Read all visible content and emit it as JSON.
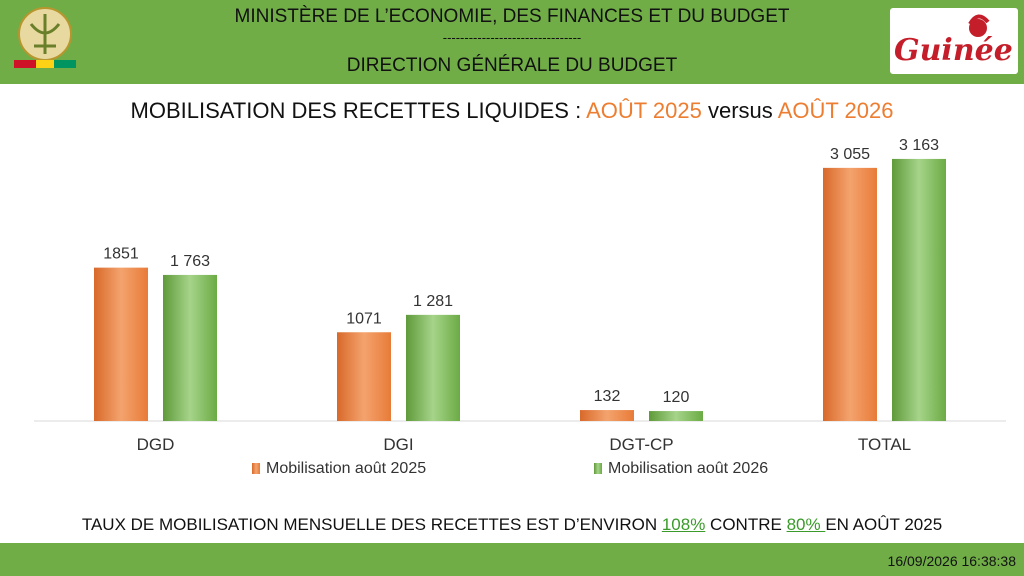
{
  "header": {
    "ministry": "MINISTÈRE DE L’ECONOMIE, DES FINANCES ET DU BUDGET",
    "separator": "--------------------------------",
    "direction": "DIRECTION GÉNÉRALE DU BUDGET",
    "logo_text": "Guinée"
  },
  "title": {
    "prefix": "MOBILISATION DES RECETTES LIQUIDES : ",
    "period1": "AOÛT 2025",
    "middle": " versus ",
    "period2": "AOÛT 2026"
  },
  "chart_data": {
    "type": "bar",
    "categories": [
      "DGD",
      "DGI",
      "DGT-CP",
      "TOTAL"
    ],
    "series": [
      {
        "name": "Mobilisation août 2025",
        "values": [
          1851,
          1071,
          132,
          3055
        ],
        "labels": [
          "1851",
          "1071",
          "132",
          "3 055"
        ],
        "color": "#ed7d31"
      },
      {
        "name": "Mobilisation août 2026",
        "values": [
          1763,
          1281,
          120,
          3163
        ],
        "labels": [
          "1 763",
          "1 281",
          "120",
          "3 163"
        ],
        "color": "#70ad47"
      }
    ],
    "ylim": [
      0,
      3500
    ],
    "legend_position": "bottom",
    "grid": false
  },
  "footer": {
    "text_before": "TAUX DE MOBILISATION MENSUELLE DES RECETTES EST D’ENVIRON ",
    "rate_current": "108%",
    "text_middle": " CONTRE ",
    "rate_previous": "80% ",
    "text_after": "EN AOÛT 2025",
    "timestamp": "16/09/2026 16:38:38"
  },
  "colors": {
    "header_bg": "#70ad47",
    "accent_orange": "#ed7d31",
    "accent_green": "#70ad47"
  }
}
